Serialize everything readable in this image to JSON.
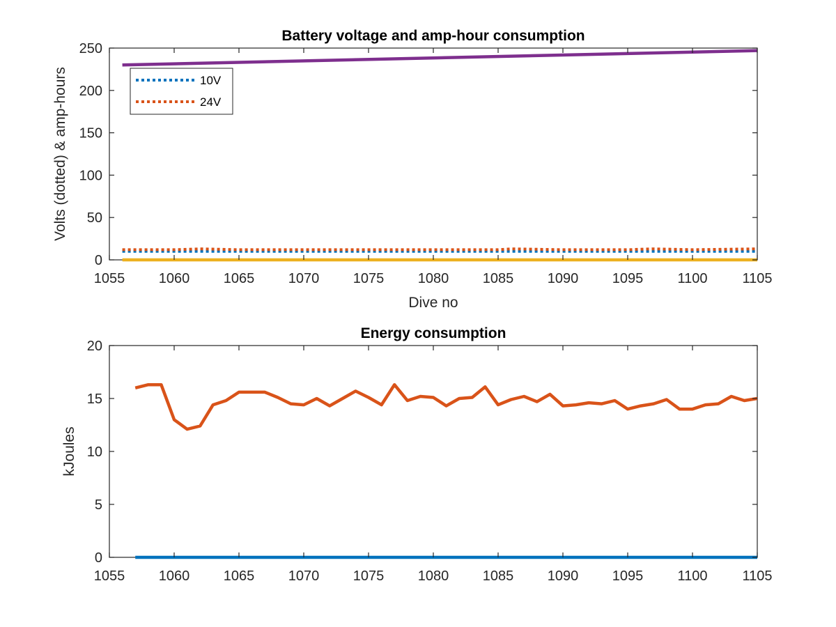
{
  "chart_data": [
    {
      "type": "line",
      "title": "Battery voltage and amp-hour consumption",
      "xlabel": "Dive no",
      "ylabel": "Volts (dotted) & amp-hours",
      "xlim": [
        1055,
        1105
      ],
      "ylim": [
        0,
        250
      ],
      "xticks": [
        1055,
        1060,
        1065,
        1070,
        1075,
        1080,
        1085,
        1090,
        1095,
        1100,
        1105
      ],
      "yticks": [
        0,
        50,
        100,
        150,
        200,
        250
      ],
      "grid": false,
      "legend": {
        "placement": "top-left",
        "entries": [
          "10V",
          "24V"
        ]
      },
      "series": [
        {
          "name": "10V",
          "style": "dotted",
          "color": "#0072BD",
          "x": [
            1056,
            1105
          ],
          "y": [
            10,
            10
          ]
        },
        {
          "name": "24V",
          "style": "dotted",
          "color": "#D95319",
          "x": [
            1056,
            1060,
            1062,
            1065,
            1070,
            1075,
            1080,
            1085,
            1086,
            1090,
            1095,
            1097,
            1100,
            1105
          ],
          "y": [
            12,
            12,
            13,
            12,
            12,
            12,
            12,
            12,
            13,
            12,
            12,
            13,
            12,
            13
          ]
        },
        {
          "style": "solid",
          "color": "#EDB120",
          "x": [
            1056,
            1105
          ],
          "y": [
            0,
            0
          ]
        },
        {
          "style": "solid",
          "color": "#7E2F8E",
          "x": [
            1056,
            1105
          ],
          "y": [
            230,
            247
          ]
        }
      ]
    },
    {
      "type": "line",
      "title": "Energy consumption",
      "xlabel": "",
      "ylabel": "kJoules",
      "xlim": [
        1055,
        1105
      ],
      "ylim": [
        0,
        20
      ],
      "xticks": [
        1055,
        1060,
        1065,
        1070,
        1075,
        1080,
        1085,
        1090,
        1095,
        1100,
        1105
      ],
      "yticks": [
        0,
        5,
        10,
        15,
        20
      ],
      "grid": false,
      "series": [
        {
          "color": "#0072BD",
          "x": [
            1057,
            1105
          ],
          "y": [
            0,
            0
          ]
        },
        {
          "color": "#D95319",
          "x": [
            1057,
            1058,
            1059,
            1060,
            1061,
            1062,
            1063,
            1064,
            1065,
            1066,
            1067,
            1068,
            1069,
            1070,
            1071,
            1072,
            1073,
            1074,
            1075,
            1076,
            1077,
            1078,
            1079,
            1080,
            1081,
            1082,
            1083,
            1084,
            1085,
            1086,
            1087,
            1088,
            1089,
            1090,
            1091,
            1092,
            1093,
            1094,
            1095,
            1096,
            1097,
            1098,
            1099,
            1100,
            1101,
            1102,
            1103,
            1104,
            1105
          ],
          "y": [
            16.0,
            16.3,
            16.3,
            13.0,
            12.1,
            12.4,
            14.4,
            14.8,
            15.6,
            15.6,
            15.6,
            15.1,
            14.5,
            14.4,
            15.0,
            14.3,
            15.0,
            15.7,
            15.1,
            14.4,
            16.3,
            14.8,
            15.2,
            15.1,
            14.3,
            15.0,
            15.1,
            16.1,
            14.4,
            14.9,
            15.2,
            14.7,
            15.4,
            14.3,
            14.4,
            14.6,
            14.5,
            14.8,
            14.0,
            14.3,
            14.5,
            14.9,
            14.0,
            14.0,
            14.4,
            14.5,
            15.2,
            14.8,
            15.0
          ]
        }
      ]
    }
  ]
}
